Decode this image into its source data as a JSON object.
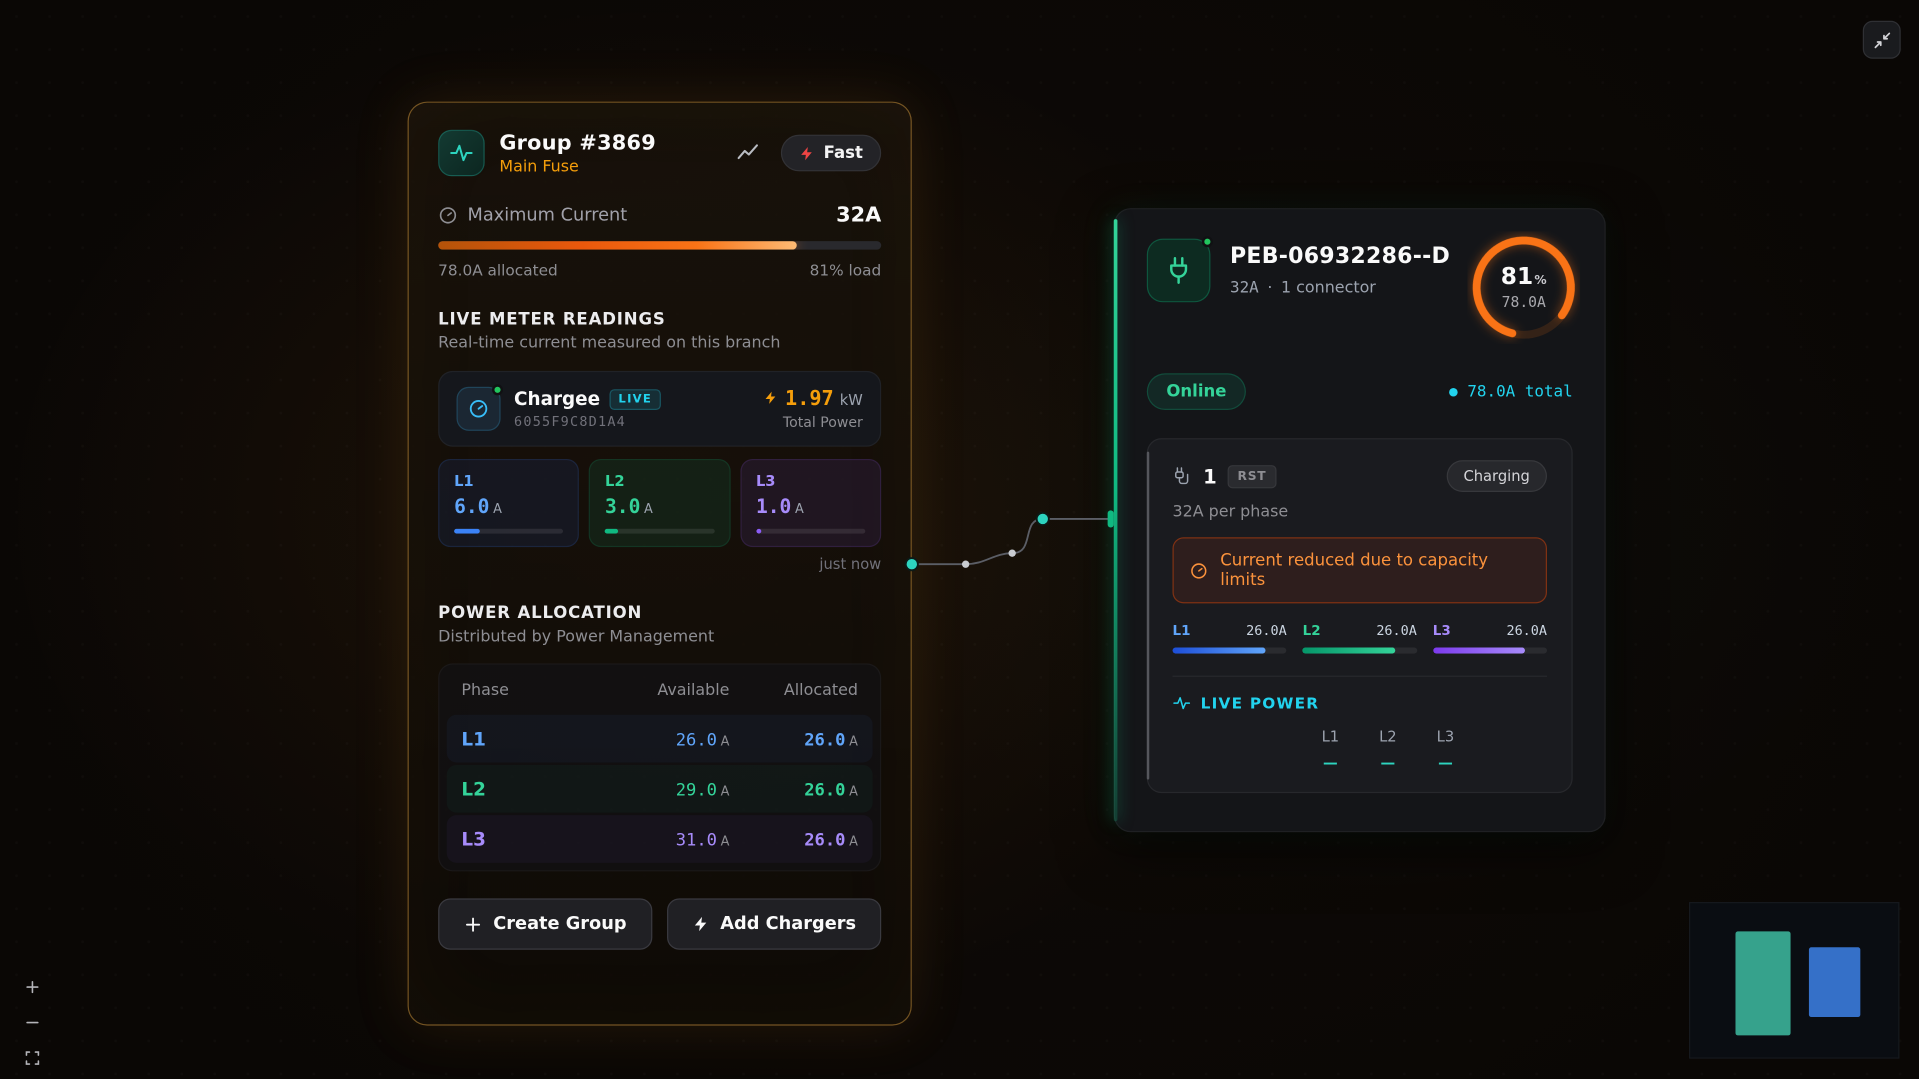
{
  "group": {
    "title": "Group #3869",
    "subtitle": "Main Fuse",
    "mode_badge": "Fast",
    "max_current_label": "Maximum Current",
    "max_current_value": "32A",
    "allocated_label": "78.0A allocated",
    "load_label": "81% load",
    "load_pct": 81,
    "live_meter_heading": "LIVE METER READINGS",
    "live_meter_sub": "Real-time current measured on this branch",
    "meter": {
      "name": "Chargee",
      "live_badge": "LIVE",
      "id": "6055F9C8D1A4",
      "power_value": "1.97",
      "power_unit": "kW",
      "power_label": "Total Power",
      "updated": "just now",
      "phases": [
        {
          "label": "L1",
          "value": "6.0",
          "unit": "A",
          "pct": 23
        },
        {
          "label": "L2",
          "value": "3.0",
          "unit": "A",
          "pct": 12
        },
        {
          "label": "L3",
          "value": "1.0",
          "unit": "A",
          "pct": 5
        }
      ]
    },
    "allocation": {
      "heading": "POWER ALLOCATION",
      "sub": "Distributed by Power Management",
      "columns": [
        "Phase",
        "Available",
        "Allocated"
      ],
      "unit": "A",
      "rows": [
        {
          "phase": "L1",
          "available": "26.0",
          "allocated": "26.0"
        },
        {
          "phase": "L2",
          "available": "29.0",
          "allocated": "26.0"
        },
        {
          "phase": "L3",
          "available": "31.0",
          "allocated": "26.0"
        }
      ]
    },
    "buttons": {
      "create_group": "Create Group",
      "add_chargers": "Add Chargers"
    }
  },
  "charger": {
    "title": "PEB-06932286--D",
    "amps": "32A",
    "dot": "·",
    "connectors": "1 connector",
    "gauge": {
      "pct": 81,
      "pct_label": "81",
      "pct_symbol": "%",
      "amps": "78.0A"
    },
    "status": "Online",
    "total": "78.0A total",
    "connector": {
      "number": "1",
      "type_badge": "RST",
      "state_badge": "Charging",
      "per_phase": "32A per phase",
      "warning": "Current reduced due to capacity limits",
      "phases": [
        {
          "label": "L1",
          "value": "26.0A",
          "pct": 81
        },
        {
          "label": "L2",
          "value": "26.0A",
          "pct": 81
        },
        {
          "label": "L3",
          "value": "26.0A",
          "pct": 81
        }
      ],
      "live_power_heading": "LIVE POWER",
      "live_power": [
        {
          "label": "L1",
          "value": "—"
        },
        {
          "label": "L2",
          "value": "—"
        },
        {
          "label": "L3",
          "value": "—"
        }
      ]
    }
  },
  "colors": {
    "accent_orange": "#f97316",
    "accent_amber": "#f59e0b",
    "accent_teal": "#2dd4bf",
    "accent_cyan": "#22d3ee",
    "status_green": "#10b981",
    "phase_l1": "#60a5fa",
    "phase_l2": "#34d399",
    "phase_l3": "#a78bfa",
    "warning_red": "#ef4444"
  }
}
